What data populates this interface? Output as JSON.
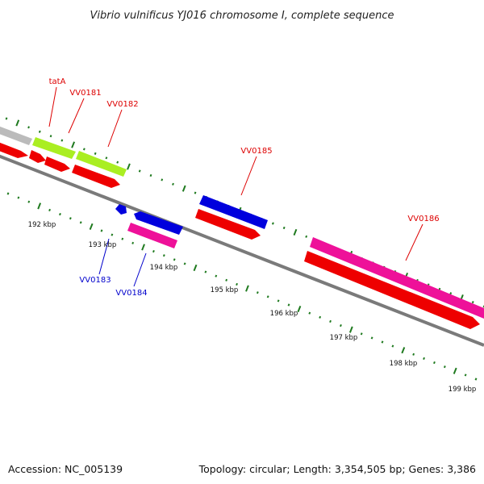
{
  "title": "Vibrio vulnificus YJ016 chromosome I, complete sequence",
  "footer": {
    "accession": "Accession: NC_005139",
    "summary": "Topology: circular; Length: 3,354,505 bp; Genes: 3,386"
  },
  "colors": {
    "backbone": "#7a7a7a",
    "tick": "#1f7a1f",
    "cds_red": "#ee0000",
    "label_red": "#dd0000",
    "label_blue": "#0000cc",
    "blue": "#0000dd",
    "pink": "#ee1199",
    "lime": "#aaee22",
    "gray": "#bbbbbb"
  },
  "scale": {
    "ticks": [
      {
        "label": "192 kbp"
      },
      {
        "label": "193 kbp"
      },
      {
        "label": "194 kbp"
      },
      {
        "label": "195 kbp"
      },
      {
        "label": "196 kbp"
      },
      {
        "label": "197 kbp"
      },
      {
        "label": "198 kbp"
      },
      {
        "label": "199 kbp"
      }
    ]
  },
  "genes": [
    {
      "name": "tatA",
      "color": "label_red"
    },
    {
      "name": "VV0181",
      "color": "label_red"
    },
    {
      "name": "VV0182",
      "color": "label_red"
    },
    {
      "name": "VV0183",
      "color": "label_blue"
    },
    {
      "name": "VV0184",
      "color": "label_blue"
    },
    {
      "name": "VV0185",
      "color": "label_red"
    },
    {
      "name": "VV0186",
      "color": "label_red"
    }
  ]
}
